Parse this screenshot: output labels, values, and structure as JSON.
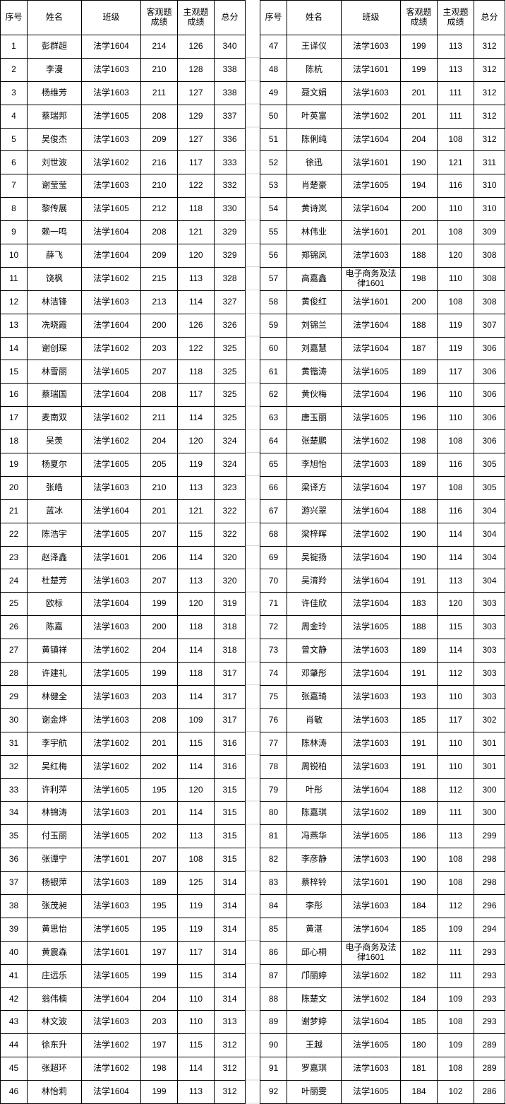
{
  "header": {
    "col_seq": "序号",
    "col_name": "姓名",
    "col_class": "班级",
    "col_objective": "客观题\n成绩",
    "col_subjective": "主观题\n成绩",
    "col_total": "总分"
  },
  "colors": {
    "border": "#000000",
    "gridline": "#d9d9d9",
    "background": "#ffffff",
    "text": "#000000"
  },
  "tables": [
    {
      "rows": [
        [
          1,
          "彭群超",
          "法学1604",
          214,
          126,
          340
        ],
        [
          2,
          "李漫",
          "法学1603",
          210,
          128,
          338
        ],
        [
          3,
          "杨维芳",
          "法学1603",
          211,
          127,
          338
        ],
        [
          4,
          "蔡瑞邦",
          "法学1605",
          208,
          129,
          337
        ],
        [
          5,
          "吴俊杰",
          "法学1603",
          209,
          127,
          336
        ],
        [
          6,
          "刘世波",
          "法学1602",
          216,
          117,
          333
        ],
        [
          7,
          "谢莹莹",
          "法学1603",
          210,
          122,
          332
        ],
        [
          8,
          "黎传展",
          "法学1605",
          212,
          118,
          330
        ],
        [
          9,
          "赖一鸣",
          "法学1604",
          208,
          121,
          329
        ],
        [
          10,
          "薛飞",
          "法学1604",
          209,
          120,
          329
        ],
        [
          11,
          "饶枫",
          "法学1602",
          215,
          113,
          328
        ],
        [
          12,
          "林洁锋",
          "法学1603",
          213,
          114,
          327
        ],
        [
          13,
          "冼晓霞",
          "法学1604",
          200,
          126,
          326
        ],
        [
          14,
          "谢创琛",
          "法学1602",
          203,
          122,
          325
        ],
        [
          15,
          "林雪丽",
          "法学1605",
          207,
          118,
          325
        ],
        [
          16,
          "蔡瑞国",
          "法学1604",
          208,
          117,
          325
        ],
        [
          17,
          "麦南双",
          "法学1602",
          211,
          114,
          325
        ],
        [
          18,
          "吴羡",
          "法学1602",
          204,
          120,
          324
        ],
        [
          19,
          "杨夏尔",
          "法学1605",
          205,
          119,
          324
        ],
        [
          20,
          "张皓",
          "法学1603",
          210,
          113,
          323
        ],
        [
          21,
          "蓝冰",
          "法学1604",
          201,
          121,
          322
        ],
        [
          22,
          "陈浩宇",
          "法学1605",
          207,
          115,
          322
        ],
        [
          23,
          "赵泽鑫",
          "法学1601",
          206,
          114,
          320
        ],
        [
          24,
          "杜楚芳",
          "法学1603",
          207,
          113,
          320
        ],
        [
          25,
          "欧标",
          "法学1604",
          199,
          120,
          319
        ],
        [
          26,
          "陈嘉",
          "法学1603",
          200,
          118,
          318
        ],
        [
          27,
          "黄镇祥",
          "法学1602",
          204,
          114,
          318
        ],
        [
          28,
          "许建礼",
          "法学1605",
          199,
          118,
          317
        ],
        [
          29,
          "林健全",
          "法学1603",
          203,
          114,
          317
        ],
        [
          30,
          "谢金烨",
          "法学1603",
          208,
          109,
          317
        ],
        [
          31,
          "李宇航",
          "法学1602",
          201,
          115,
          316
        ],
        [
          32,
          "吴红梅",
          "法学1602",
          202,
          114,
          316
        ],
        [
          33,
          "许利萍",
          "法学1605",
          195,
          120,
          315
        ],
        [
          34,
          "林锦涛",
          "法学1603",
          201,
          114,
          315
        ],
        [
          35,
          "付玉丽",
          "法学1605",
          202,
          113,
          315
        ],
        [
          36,
          "张谭宁",
          "法学1601",
          207,
          108,
          315
        ],
        [
          37,
          "杨银萍",
          "法学1603",
          189,
          125,
          314
        ],
        [
          38,
          "张茂昶",
          "法学1603",
          195,
          119,
          314
        ],
        [
          39,
          "黄思怡",
          "法学1605",
          195,
          119,
          314
        ],
        [
          40,
          "黄震森",
          "法学1601",
          197,
          117,
          314
        ],
        [
          41,
          "庄远乐",
          "法学1605",
          199,
          115,
          314
        ],
        [
          42,
          "翁伟楠",
          "法学1604",
          204,
          110,
          314
        ],
        [
          43,
          "林文波",
          "法学1603",
          203,
          110,
          313
        ],
        [
          44,
          "徐东升",
          "法学1602",
          197,
          115,
          312
        ],
        [
          45,
          "张超环",
          "法学1602",
          198,
          114,
          312
        ],
        [
          46,
          "林怡莉",
          "法学1604",
          199,
          113,
          312
        ]
      ]
    },
    {
      "rows": [
        [
          47,
          "王译仪",
          "法学1603",
          199,
          113,
          312
        ],
        [
          48,
          "陈杭",
          "法学1601",
          199,
          113,
          312
        ],
        [
          49,
          "聂文娟",
          "法学1603",
          201,
          111,
          312
        ],
        [
          50,
          "叶英富",
          "法学1602",
          201,
          111,
          312
        ],
        [
          51,
          "陈俐纯",
          "法学1604",
          204,
          108,
          312
        ],
        [
          52,
          "徐迅",
          "法学1601",
          190,
          121,
          311
        ],
        [
          53,
          "肖楚豪",
          "法学1605",
          194,
          116,
          310
        ],
        [
          54,
          "黄诗岚",
          "法学1604",
          200,
          110,
          310
        ],
        [
          55,
          "林伟业",
          "法学1601",
          201,
          108,
          309
        ],
        [
          56,
          "郑锦凤",
          "法学1603",
          188,
          120,
          308
        ],
        [
          57,
          "高嘉鑫",
          "电子商务及法律1601",
          198,
          110,
          308
        ],
        [
          58,
          "黄俊红",
          "法学1601",
          200,
          108,
          308
        ],
        [
          59,
          "刘锦兰",
          "法学1604",
          188,
          119,
          307
        ],
        [
          60,
          "刘嘉慧",
          "法学1604",
          187,
          119,
          306
        ],
        [
          61,
          "黄锴涛",
          "法学1605",
          189,
          117,
          306
        ],
        [
          62,
          "黄伙梅",
          "法学1604",
          196,
          110,
          306
        ],
        [
          63,
          "唐玉丽",
          "法学1605",
          196,
          110,
          306
        ],
        [
          64,
          "张楚鹏",
          "法学1602",
          198,
          108,
          306
        ],
        [
          65,
          "李旭怡",
          "法学1603",
          189,
          116,
          305
        ],
        [
          66,
          "梁译方",
          "法学1604",
          197,
          108,
          305
        ],
        [
          67,
          "游兴翠",
          "法学1604",
          188,
          116,
          304
        ],
        [
          68,
          "梁梓晖",
          "法学1602",
          190,
          114,
          304
        ],
        [
          69,
          "吴锭扬",
          "法学1604",
          190,
          114,
          304
        ],
        [
          70,
          "吴淯羚",
          "法学1604",
          191,
          113,
          304
        ],
        [
          71,
          "许佳欣",
          "法学1604",
          183,
          120,
          303
        ],
        [
          72,
          "周金玲",
          "法学1605",
          188,
          115,
          303
        ],
        [
          73,
          "曾文静",
          "法学1603",
          189,
          114,
          303
        ],
        [
          74,
          "邓肇彤",
          "法学1604",
          191,
          112,
          303
        ],
        [
          75,
          "张嘉琦",
          "法学1603",
          193,
          110,
          303
        ],
        [
          76,
          "肖敏",
          "法学1603",
          185,
          117,
          302
        ],
        [
          77,
          "陈林涛",
          "法学1603",
          191,
          110,
          301
        ],
        [
          78,
          "周锐柏",
          "法学1603",
          191,
          110,
          301
        ],
        [
          79,
          "叶彤",
          "法学1604",
          188,
          112,
          300
        ],
        [
          80,
          "陈嘉琪",
          "法学1602",
          189,
          111,
          300
        ],
        [
          81,
          "冯燕华",
          "法学1605",
          186,
          113,
          299
        ],
        [
          82,
          "李彦静",
          "法学1603",
          190,
          108,
          298
        ],
        [
          83,
          "蔡梓铃",
          "法学1601",
          190,
          108,
          298
        ],
        [
          84,
          "李彤",
          "法学1603",
          184,
          112,
          296
        ],
        [
          85,
          "黄湛",
          "法学1604",
          185,
          109,
          294
        ],
        [
          86,
          "邱心桐",
          "电子商务及法律1601",
          182,
          111,
          293
        ],
        [
          87,
          "邝丽婷",
          "法学1602",
          182,
          111,
          293
        ],
        [
          88,
          "陈楚文",
          "法学1602",
          184,
          109,
          293
        ],
        [
          89,
          "谢梦婷",
          "法学1604",
          185,
          108,
          293
        ],
        [
          90,
          "王越",
          "法学1605",
          180,
          109,
          289
        ],
        [
          91,
          "罗嘉琪",
          "法学1603",
          181,
          108,
          289
        ],
        [
          92,
          "叶丽雯",
          "法学1605",
          184,
          102,
          286
        ]
      ]
    }
  ]
}
